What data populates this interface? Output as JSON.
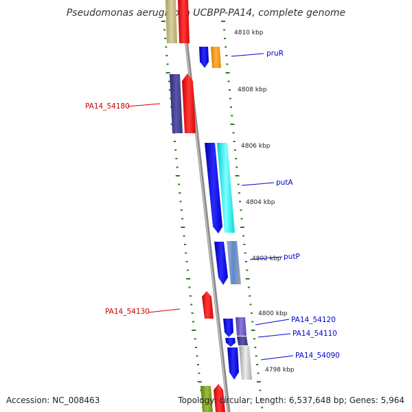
{
  "title": "Pseudomonas aeruginosa UCBPP-PA14, complete genome",
  "footer": {
    "accession": "Accession: NC_008463",
    "summary": "Topology: circular; Length: 6,537,648 bp; Genes: 5,964"
  },
  "kbp_labels": [
    "4810 kbp",
    "4808 kbp",
    "4806 kbp",
    "4804 kbp",
    "4802 kbp",
    "4800 kbp",
    "4798 kbp"
  ],
  "gene_labels": {
    "pruR": "pruR",
    "PA14_54180": "PA14_54180",
    "putA": "putA",
    "putP": "putP",
    "PA14_54130": "PA14_54130",
    "PA14_54120": "PA14_54120",
    "PA14_54110": "PA14_54110",
    "PA14_54090": "PA14_54090"
  },
  "colors": {
    "forward_label": "#0000cc",
    "reverse_label": "#cc0000",
    "tick": "#2a7a1a",
    "backbone": "#8c8c8c"
  }
}
